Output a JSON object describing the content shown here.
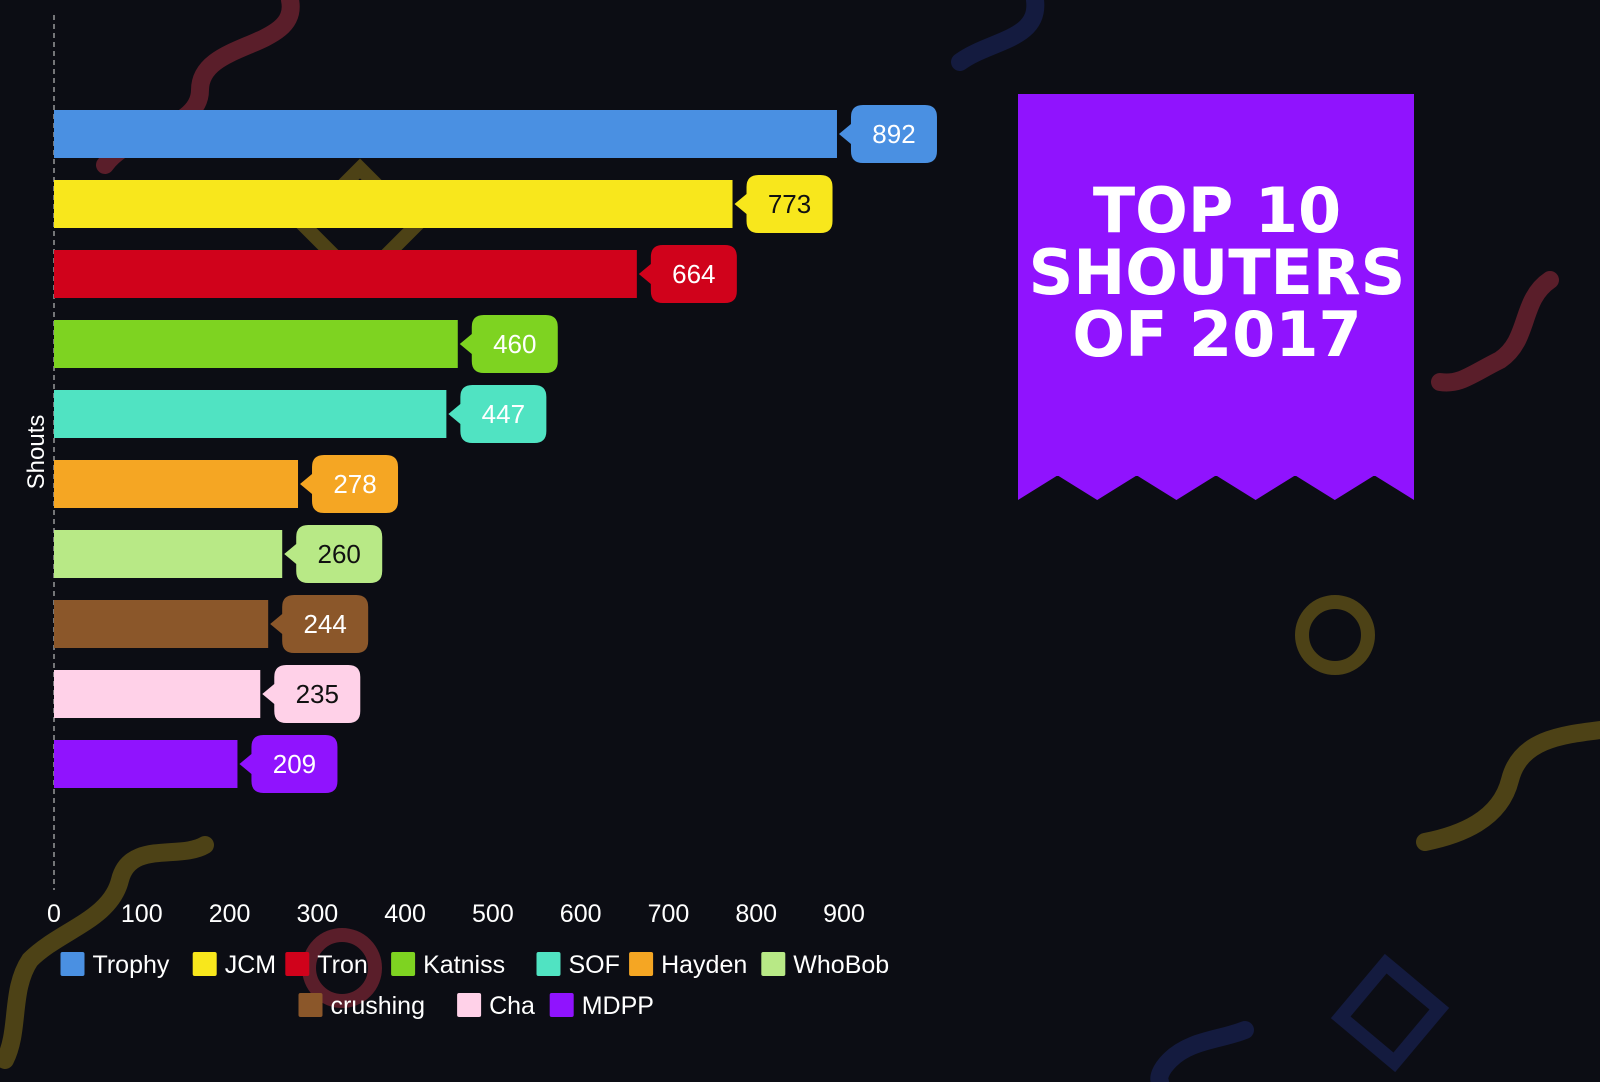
{
  "chart_data": {
    "type": "bar",
    "orientation": "horizontal",
    "title": "TOP 10 SHOUTERS OF 2017",
    "title_lines": [
      "TOP 10",
      "SHOUTERS",
      "OF 2017"
    ],
    "xlabel": "",
    "ylabel": "Shouts",
    "xlim": [
      0,
      900
    ],
    "xticks": [
      "0",
      "100",
      "200",
      "300",
      "400",
      "500",
      "600",
      "700",
      "800",
      "900"
    ],
    "grid": false,
    "legend_position": "bottom",
    "series": [
      {
        "name": "Trophy",
        "value": 892,
        "color": "#4a90e2",
        "label_color": "#ffffff"
      },
      {
        "name": "JCM",
        "value": 773,
        "color": "#f8e71c",
        "label_color": "#111111"
      },
      {
        "name": "Tron",
        "value": 664,
        "color": "#d0021b",
        "label_color": "#ffffff"
      },
      {
        "name": "Katniss",
        "value": 460,
        "color": "#7ed321",
        "label_color": "#ffffff"
      },
      {
        "name": "SOF",
        "value": 447,
        "color": "#50e3c2",
        "label_color": "#ffffff"
      },
      {
        "name": "Hayden",
        "value": 278,
        "color": "#f5a623",
        "label_color": "#ffffff"
      },
      {
        "name": "WhoBob",
        "value": 260,
        "color": "#b8e986",
        "label_color": "#111111"
      },
      {
        "name": "crushing",
        "value": 244,
        "color": "#8b572a",
        "label_color": "#ffffff"
      },
      {
        "name": "Cha",
        "value": 235,
        "color": "#ffd1e8",
        "label_color": "#111111"
      },
      {
        "name": "MDPP",
        "value": 209,
        "color": "#9013fe",
        "label_color": "#ffffff"
      }
    ],
    "banner_color": "#9013fe",
    "background_color": "#0c0d14"
  }
}
